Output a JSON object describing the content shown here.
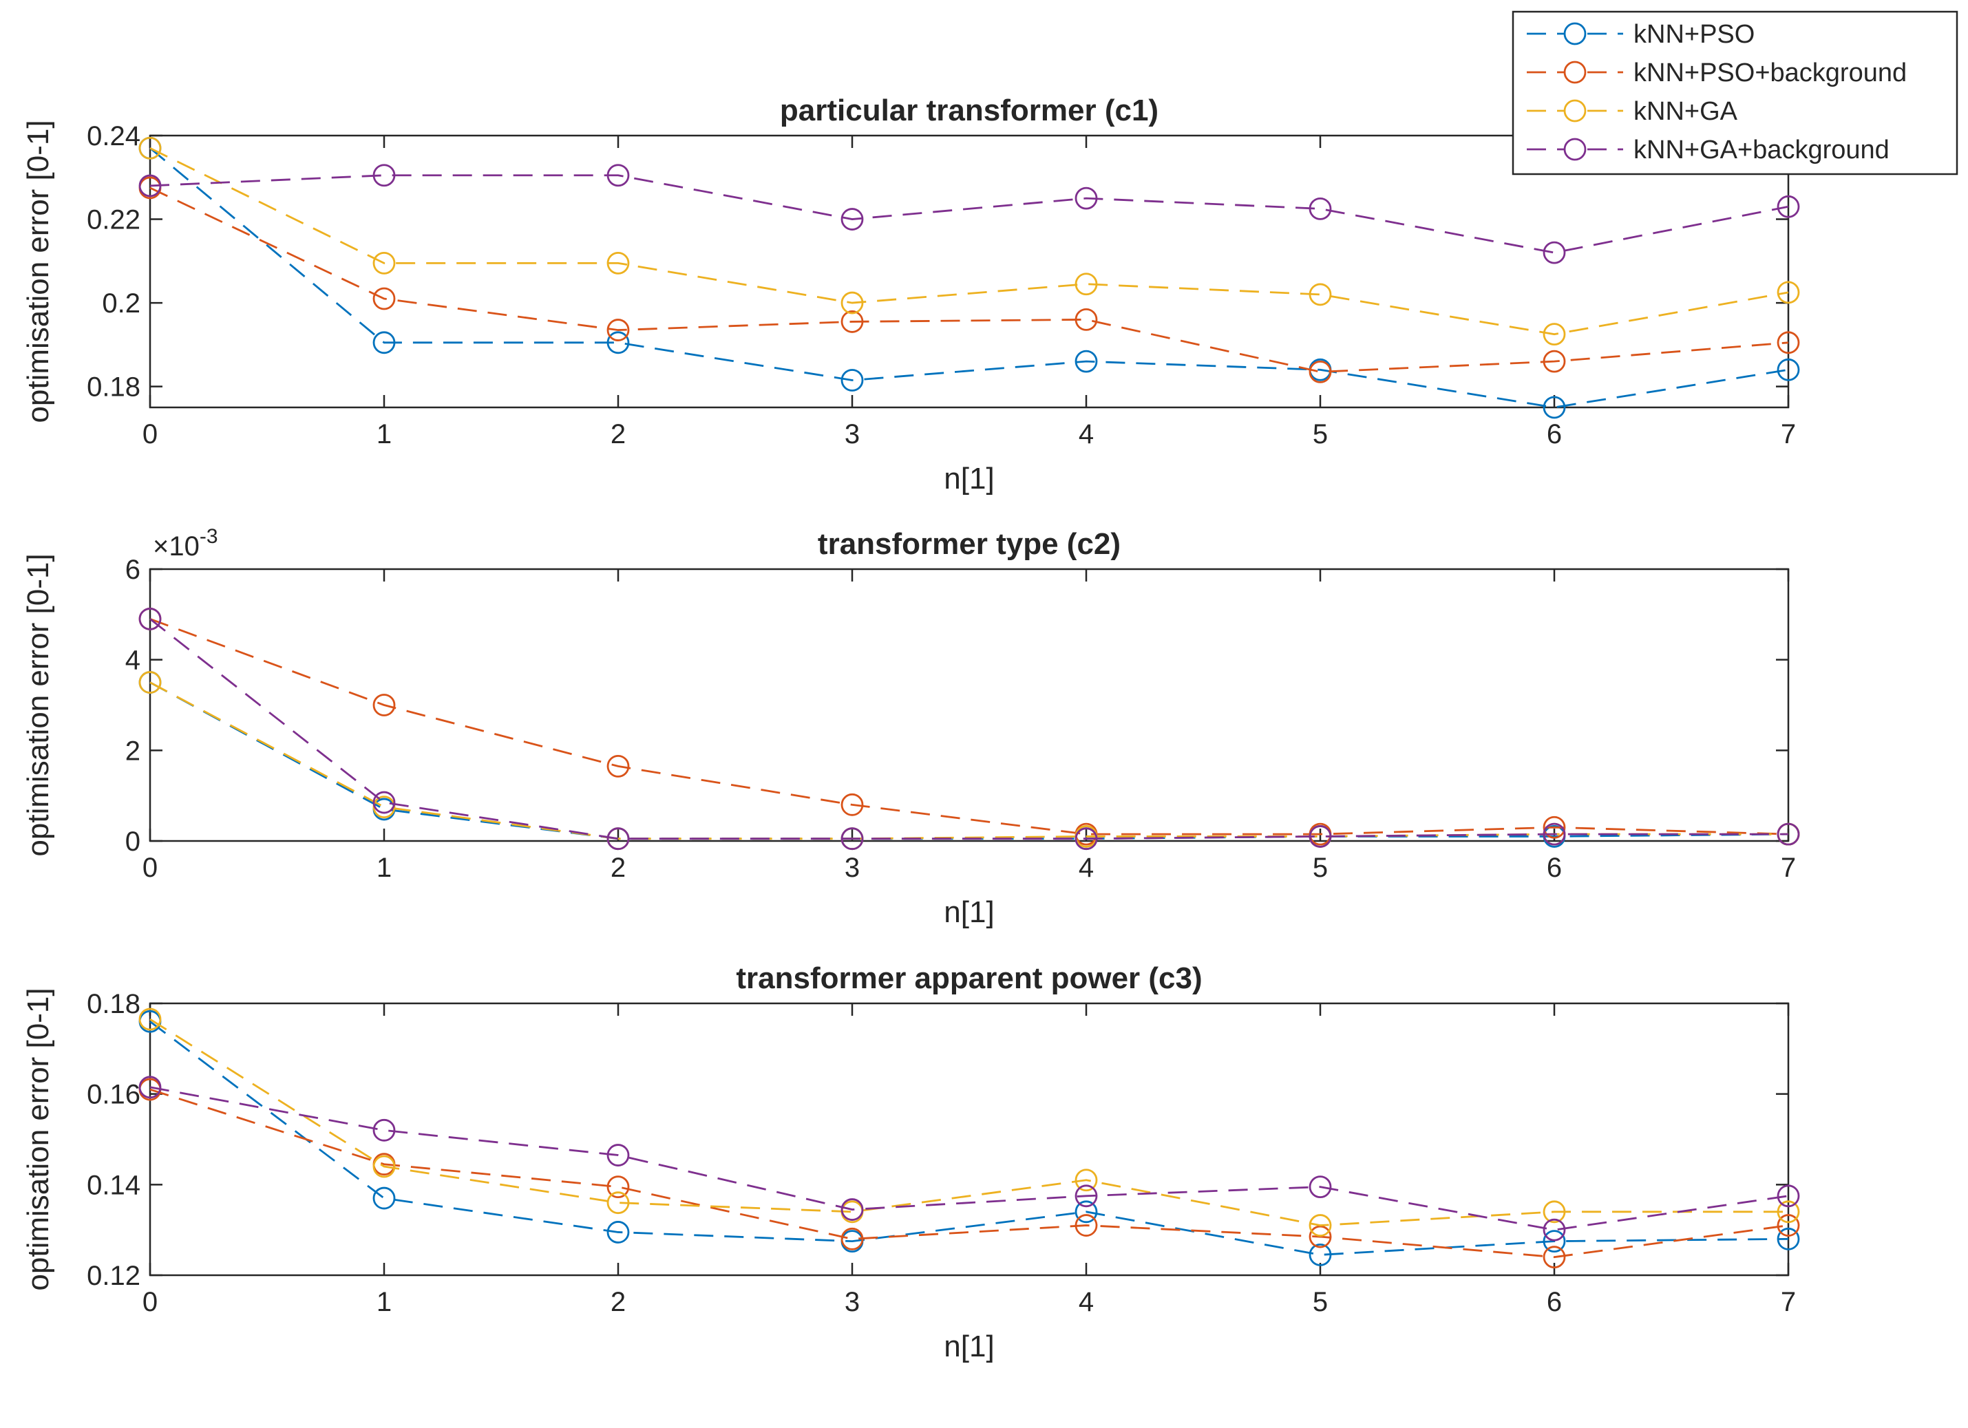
{
  "series_styles": [
    {
      "name": "kNN+PSO",
      "color": "#0072BD"
    },
    {
      "name": "kNN+PSO+background",
      "color": "#D95319"
    },
    {
      "name": "kNN+GA",
      "color": "#EDB120"
    },
    {
      "name": "kNN+GA+background",
      "color": "#7E2F8E"
    }
  ],
  "legend": {
    "position": "top-right",
    "entries": [
      "kNN+PSO",
      "kNN+PSO+background",
      "kNN+GA",
      "kNN+GA+background"
    ]
  },
  "chart_data": [
    {
      "type": "line",
      "title": "particular transformer (c1)",
      "xlabel": "n[1]",
      "ylabel": "optimisation error [0-1]",
      "xlim": [
        0,
        7
      ],
      "ylim": [
        0.175,
        0.24
      ],
      "xticks": [
        0,
        1,
        2,
        3,
        4,
        5,
        6,
        7
      ],
      "xtick_labels": [
        "0",
        "1",
        "2",
        "3",
        "4",
        "5",
        "6",
        "7"
      ],
      "yticks": [
        0.18,
        0.2,
        0.22,
        0.24
      ],
      "ytick_labels": [
        "0.18",
        "0.2",
        "0.22",
        "0.24"
      ],
      "exponent_label": null,
      "x": [
        0,
        1,
        2,
        3,
        4,
        5,
        6,
        7
      ],
      "series": [
        {
          "name": "kNN+PSO",
          "values": [
            0.237,
            0.1905,
            0.1905,
            0.1815,
            0.186,
            0.184,
            0.175,
            0.184
          ]
        },
        {
          "name": "kNN+PSO+background",
          "values": [
            0.2275,
            0.201,
            0.1935,
            0.1955,
            0.196,
            0.1835,
            0.186,
            0.1905
          ]
        },
        {
          "name": "kNN+GA",
          "values": [
            0.237,
            0.2095,
            0.2095,
            0.2,
            0.2045,
            0.202,
            0.1925,
            0.2025
          ]
        },
        {
          "name": "kNN+GA+background",
          "values": [
            0.228,
            0.2305,
            0.2305,
            0.22,
            0.225,
            0.2225,
            0.212,
            0.223
          ]
        }
      ]
    },
    {
      "type": "line",
      "title": "transformer type (c2)",
      "xlabel": "n[1]",
      "ylabel": "optimisation  error [0-1]",
      "xlim": [
        0,
        7
      ],
      "ylim": [
        0,
        6
      ],
      "xticks": [
        0,
        1,
        2,
        3,
        4,
        5,
        6,
        7
      ],
      "xtick_labels": [
        "0",
        "1",
        "2",
        "3",
        "4",
        "5",
        "6",
        "7"
      ],
      "yticks": [
        0,
        2,
        4,
        6
      ],
      "ytick_labels": [
        "0",
        "2",
        "4",
        "6"
      ],
      "exponent_label": {
        "base": "×10",
        "power": "-3"
      },
      "x": [
        0,
        1,
        2,
        3,
        4,
        5,
        6,
        7
      ],
      "series": [
        {
          "name": "kNN+PSO",
          "values": [
            3.5,
            0.7,
            0.05,
            0.05,
            0.05,
            0.1,
            0.1,
            0.15
          ]
        },
        {
          "name": "kNN+PSO+background",
          "values": [
            4.9,
            3.0,
            1.65,
            0.8,
            0.15,
            0.15,
            0.3,
            0.15
          ]
        },
        {
          "name": "kNN+GA",
          "values": [
            3.5,
            0.75,
            0.05,
            0.05,
            0.1,
            0.1,
            0.15,
            0.15
          ]
        },
        {
          "name": "kNN+GA+background",
          "values": [
            4.9,
            0.85,
            0.05,
            0.05,
            0.05,
            0.1,
            0.15,
            0.15
          ]
        }
      ]
    },
    {
      "type": "line",
      "title": "transformer apparent power (c3)",
      "xlabel": "n[1]",
      "ylabel": "optimisation error [0-1]",
      "xlim": [
        0,
        7
      ],
      "ylim": [
        0.12,
        0.18
      ],
      "xticks": [
        0,
        1,
        2,
        3,
        4,
        5,
        6,
        7
      ],
      "xtick_labels": [
        "0",
        "1",
        "2",
        "3",
        "4",
        "5",
        "6",
        "7"
      ],
      "yticks": [
        0.12,
        0.14,
        0.16,
        0.18
      ],
      "ytick_labels": [
        "0.12",
        "0.14",
        "0.16",
        "0.18"
      ],
      "exponent_label": null,
      "x": [
        0,
        1,
        2,
        3,
        4,
        5,
        6,
        7
      ],
      "series": [
        {
          "name": "kNN+PSO",
          "values": [
            0.176,
            0.137,
            0.1295,
            0.1275,
            0.134,
            0.1245,
            0.1275,
            0.128
          ]
        },
        {
          "name": "kNN+PSO+background",
          "values": [
            0.161,
            0.1445,
            0.1395,
            0.128,
            0.131,
            0.1285,
            0.124,
            0.131
          ]
        },
        {
          "name": "kNN+GA",
          "values": [
            0.1765,
            0.144,
            0.136,
            0.134,
            0.141,
            0.131,
            0.134,
            0.134
          ]
        },
        {
          "name": "kNN+GA+background",
          "values": [
            0.1615,
            0.152,
            0.1465,
            0.1345,
            0.1375,
            0.1395,
            0.13,
            0.1375
          ]
        }
      ]
    }
  ]
}
